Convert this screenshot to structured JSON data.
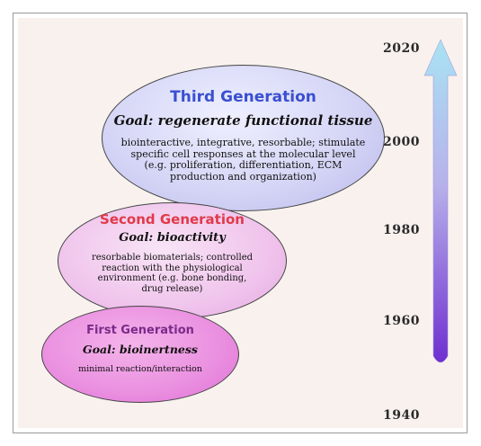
{
  "timeline": {
    "years": [
      "2020",
      "2000",
      "1980",
      "1960",
      "1940"
    ]
  },
  "generations": {
    "third": {
      "title": "Third Generation",
      "goal": "Goal: regenerate functional tissue",
      "lines": [
        "biointeractive, integrative, resorbable; stimulate",
        "specific cell responses at the molecular level",
        "(e.g. proliferation, differentiation, ECM",
        "production and organization)"
      ],
      "title_color": "#3a4fd0"
    },
    "second": {
      "title": "Second Generation",
      "goal": "Goal: bioactivity",
      "lines": [
        "resorbable biomaterials; controlled",
        "reaction with the physiological",
        "environment (e.g. bone bonding,",
        "drug release)"
      ],
      "title_color": "#e03a4a"
    },
    "first": {
      "title": "First Generation",
      "goal": "Goal: bioinertness",
      "lines": [
        "minimal reaction/interaction"
      ],
      "title_color": "#7a2a8a"
    }
  },
  "colors": {
    "arrow_top": "#a9e3f3",
    "arrow_mid": "#b7b1ea",
    "arrow_bottom": "#6f2fd0"
  }
}
